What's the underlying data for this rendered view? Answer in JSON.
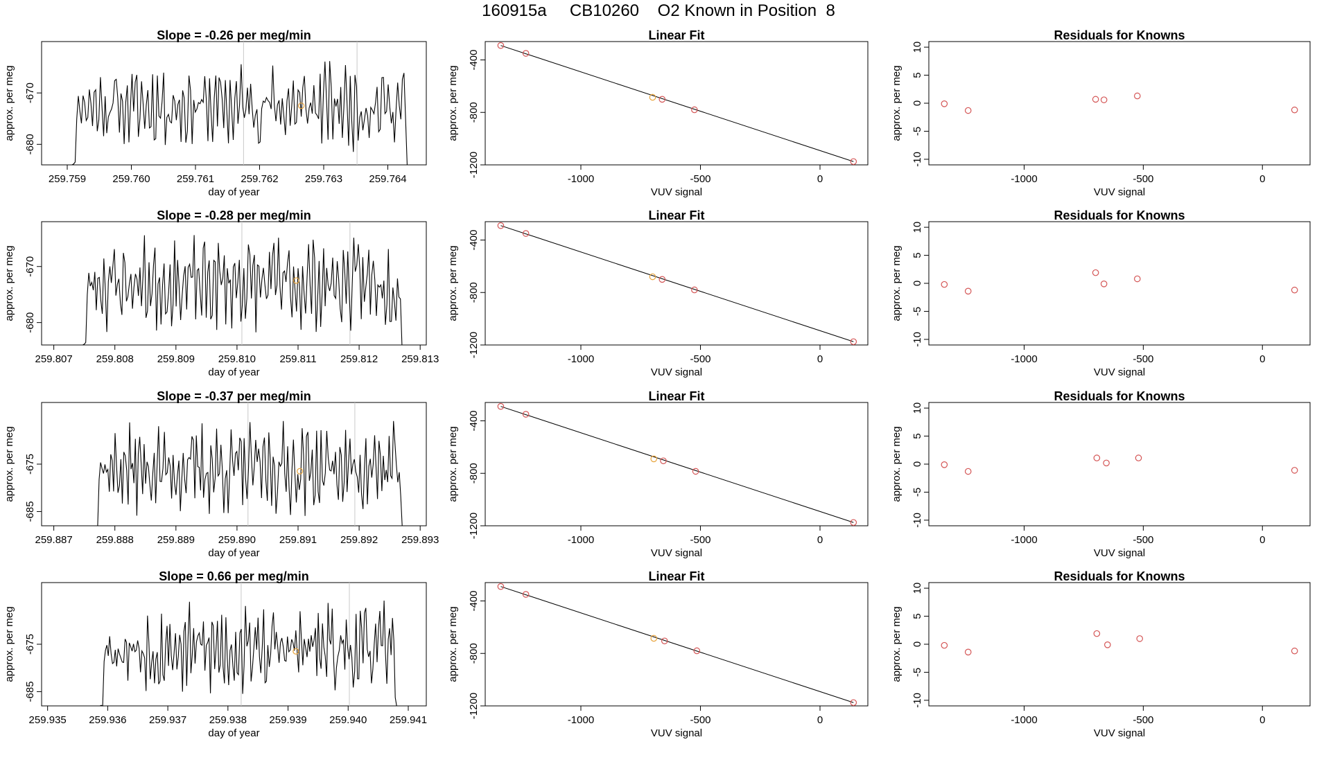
{
  "page_title": "160915a     CB10260    O2 Known in Position  8",
  "colors": {
    "trace": "#000000",
    "known_point": "#d45555",
    "sample_point": "#e8a33a",
    "event_line": "#c8c8c8",
    "fit_line": "#000000"
  },
  "chart_data": [
    {
      "row": 1,
      "panel": "timeseries",
      "type": "line",
      "title": "Slope =  -0.26  per meg/min",
      "xlabel": "day of year",
      "ylabel": "approx. per meg",
      "xlim": [
        259.7586,
        259.7646
      ],
      "ylim": [
        -684,
        -660
      ],
      "xticks": [
        "259.759",
        "259.760",
        "259.761",
        "259.762",
        "259.763",
        "259.764"
      ],
      "yticks": [
        "-670",
        "-680"
      ],
      "start": 259.759,
      "end": 259.7644,
      "base": -672.5,
      "amp": 6.5,
      "seed": 11,
      "vlines": [
        259.76175,
        259.76352
      ],
      "marker": {
        "x": 259.76265,
        "y": -672.5
      }
    },
    {
      "row": 1,
      "panel": "linear_fit",
      "type": "scatter",
      "title": "Linear Fit",
      "xlabel": "VUV signal",
      "ylabel": "approx. per meg",
      "xlim": [
        -1400,
        200
      ],
      "ylim": [
        -1200,
        -260
      ],
      "xticks": [
        "-1000",
        "-500",
        "0"
      ],
      "yticks": [
        "-400",
        "-800",
        "-1200"
      ],
      "points": [
        {
          "x": -1335,
          "y": -290
        },
        {
          "x": -1230,
          "y": -350
        },
        {
          "x": -700,
          "y": -685,
          "role": "sample"
        },
        {
          "x": -660,
          "y": -700
        },
        {
          "x": -525,
          "y": -780
        },
        {
          "x": 140,
          "y": -1175
        }
      ],
      "fit": {
        "x": [
          -1335,
          140
        ],
        "y": [
          -290,
          -1175
        ]
      }
    },
    {
      "row": 1,
      "panel": "residuals",
      "type": "scatter",
      "title": "Residuals for Knowns",
      "xlabel": "VUV signal",
      "ylabel": "approx. per meg",
      "xlim": [
        -1400,
        200
      ],
      "ylim": [
        -11,
        11
      ],
      "xticks": [
        "-1000",
        "-500",
        "0"
      ],
      "yticks": [
        "10",
        "5",
        "0",
        "-5",
        "-10"
      ],
      "points": [
        {
          "x": -1335,
          "y": -0.1
        },
        {
          "x": -1235,
          "y": -1.3
        },
        {
          "x": -700,
          "y": 0.7
        },
        {
          "x": -665,
          "y": 0.6
        },
        {
          "x": -525,
          "y": 1.3
        },
        {
          "x": 135,
          "y": -1.2
        }
      ]
    },
    {
      "row": 2,
      "panel": "timeseries",
      "type": "line",
      "title": "Slope =  -0.28  per meg/min",
      "xlabel": "day of year",
      "ylabel": "approx. per meg",
      "xlim": [
        259.8068,
        259.8131
      ],
      "ylim": [
        -684,
        -662
      ],
      "xticks": [
        "259.807",
        "259.808",
        "259.809",
        "259.810",
        "259.811",
        "259.812",
        "259.813"
      ],
      "yticks": [
        "-670",
        "-680"
      ],
      "start": 259.8074,
      "end": 259.8128,
      "base": -673,
      "amp": 6.5,
      "seed": 23,
      "vlines": [
        259.81008,
        259.81185
      ],
      "marker": {
        "x": 259.81097,
        "y": -672.5
      }
    },
    {
      "row": 2,
      "panel": "linear_fit",
      "type": "scatter",
      "title": "Linear Fit",
      "xlabel": "VUV signal",
      "ylabel": "approx. per meg",
      "xlim": [
        -1400,
        200
      ],
      "ylim": [
        -1200,
        -260
      ],
      "xticks": [
        "-1000",
        "-500",
        "0"
      ],
      "yticks": [
        "-400",
        "-800",
        "-1200"
      ],
      "points": [
        {
          "x": -1335,
          "y": -290
        },
        {
          "x": -1230,
          "y": -350
        },
        {
          "x": -700,
          "y": -680,
          "role": "sample"
        },
        {
          "x": -660,
          "y": -700
        },
        {
          "x": -525,
          "y": -780
        },
        {
          "x": 140,
          "y": -1175
        }
      ],
      "fit": {
        "x": [
          -1335,
          140
        ],
        "y": [
          -290,
          -1175
        ]
      }
    },
    {
      "row": 2,
      "panel": "residuals",
      "type": "scatter",
      "title": "Residuals for Knowns",
      "xlabel": "VUV signal",
      "ylabel": "approx. per meg",
      "xlim": [
        -1400,
        200
      ],
      "ylim": [
        -11,
        11
      ],
      "xticks": [
        "-1000",
        "-500",
        "0"
      ],
      "yticks": [
        "10",
        "5",
        "0",
        "-5",
        "-10"
      ],
      "points": [
        {
          "x": -1335,
          "y": -0.2
        },
        {
          "x": -1235,
          "y": -1.4
        },
        {
          "x": -700,
          "y": 1.9
        },
        {
          "x": -665,
          "y": -0.1
        },
        {
          "x": -525,
          "y": 0.8
        },
        {
          "x": 135,
          "y": -1.2
        }
      ]
    },
    {
      "row": 3,
      "panel": "timeseries",
      "type": "line",
      "title": "Slope =  -0.37  per meg/min",
      "xlabel": "day of year",
      "ylabel": "approx. per meg",
      "xlim": [
        259.8868,
        259.8931
      ],
      "ylim": [
        -688,
        -662
      ],
      "xticks": [
        "259.887",
        "259.888",
        "259.889",
        "259.890",
        "259.891",
        "259.892",
        "259.893"
      ],
      "yticks": [
        "-675",
        "-685"
      ],
      "start": 259.8876,
      "end": 259.8928,
      "base": -676,
      "amp": 7.5,
      "seed": 37,
      "vlines": [
        259.89018,
        259.89193
      ],
      "marker": {
        "x": 259.89103,
        "y": -676.5
      }
    },
    {
      "row": 3,
      "panel": "linear_fit",
      "type": "scatter",
      "title": "Linear Fit",
      "xlabel": "VUV signal",
      "ylabel": "approx. per meg",
      "xlim": [
        -1400,
        200
      ],
      "ylim": [
        -1200,
        -260
      ],
      "xticks": [
        "-1000",
        "-500",
        "0"
      ],
      "yticks": [
        "-400",
        "-800",
        "-1200"
      ],
      "points": [
        {
          "x": -1335,
          "y": -290
        },
        {
          "x": -1230,
          "y": -350
        },
        {
          "x": -695,
          "y": -690,
          "role": "sample"
        },
        {
          "x": -655,
          "y": -705
        },
        {
          "x": -520,
          "y": -785
        },
        {
          "x": 140,
          "y": -1175
        }
      ],
      "fit": {
        "x": [
          -1335,
          140
        ],
        "y": [
          -290,
          -1175
        ]
      }
    },
    {
      "row": 3,
      "panel": "residuals",
      "type": "scatter",
      "title": "Residuals for Knowns",
      "xlabel": "VUV signal",
      "ylabel": "approx. per meg",
      "xlim": [
        -1400,
        200
      ],
      "ylim": [
        -11,
        11
      ],
      "xticks": [
        "-1000",
        "-500",
        "0"
      ],
      "yticks": [
        "10",
        "5",
        "0",
        "-5",
        "-10"
      ],
      "points": [
        {
          "x": -1335,
          "y": -0.1
        },
        {
          "x": -1235,
          "y": -1.3
        },
        {
          "x": -695,
          "y": 1.1
        },
        {
          "x": -655,
          "y": 0.2
        },
        {
          "x": -520,
          "y": 1.1
        },
        {
          "x": 135,
          "y": -1.1
        }
      ]
    },
    {
      "row": 4,
      "panel": "timeseries",
      "type": "line",
      "title": "Slope =  0.66  per meg/min",
      "xlabel": "day of year",
      "ylabel": "approx. per meg",
      "xlim": [
        259.9349,
        259.9413
      ],
      "ylim": [
        -688,
        -662
      ],
      "xticks": [
        "259.935",
        "259.936",
        "259.937",
        "259.938",
        "259.939",
        "259.940",
        "259.941"
      ],
      "yticks": [
        "-675",
        "-685"
      ],
      "start": 259.9358,
      "end": 259.9409,
      "base": -676,
      "amp": 7.5,
      "seed": 53,
      "vlines": [
        259.93822,
        259.94002
      ],
      "marker": {
        "x": 259.93913,
        "y": -676.5
      }
    },
    {
      "row": 4,
      "panel": "linear_fit",
      "type": "scatter",
      "title": "Linear Fit",
      "xlabel": "VUV signal",
      "ylabel": "approx. per meg",
      "xlim": [
        -1400,
        200
      ],
      "ylim": [
        -1200,
        -260
      ],
      "xticks": [
        "-1000",
        "-500",
        "0"
      ],
      "yticks": [
        "-400",
        "-800",
        "-1200"
      ],
      "points": [
        {
          "x": -1335,
          "y": -290
        },
        {
          "x": -1230,
          "y": -350
        },
        {
          "x": -695,
          "y": -685,
          "role": "sample"
        },
        {
          "x": -650,
          "y": -705
        },
        {
          "x": -515,
          "y": -780
        },
        {
          "x": 140,
          "y": -1175
        }
      ],
      "fit": {
        "x": [
          -1335,
          140
        ],
        "y": [
          -290,
          -1175
        ]
      }
    },
    {
      "row": 4,
      "panel": "residuals",
      "type": "scatter",
      "title": "Residuals for Knowns",
      "xlabel": "VUV signal",
      "ylabel": "approx. per meg",
      "xlim": [
        -1400,
        200
      ],
      "ylim": [
        -11,
        11
      ],
      "xticks": [
        "-1000",
        "-500",
        "0"
      ],
      "yticks": [
        "10",
        "5",
        "0",
        "-5",
        "-10"
      ],
      "points": [
        {
          "x": -1335,
          "y": -0.2
        },
        {
          "x": -1235,
          "y": -1.4
        },
        {
          "x": -695,
          "y": 1.9
        },
        {
          "x": -650,
          "y": -0.1
        },
        {
          "x": -515,
          "y": 1.0
        },
        {
          "x": 135,
          "y": -1.2
        }
      ]
    }
  ]
}
